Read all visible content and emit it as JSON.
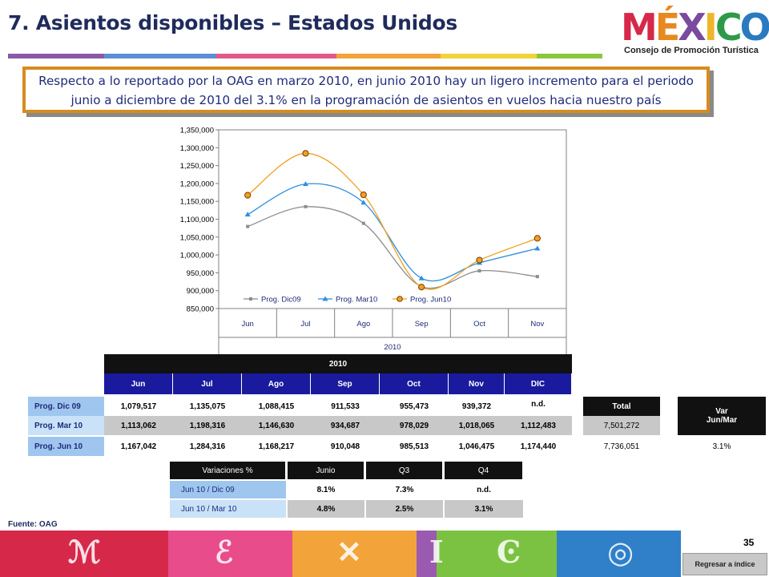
{
  "header": {
    "title": "7. Asientos disponibles – Estados Unidos",
    "logo_word": "MÉXICO",
    "logo_sub": "Consejo de Promoción Turística"
  },
  "callout": {
    "text": "Respecto a lo reportado por la OAG  en marzo 2010, en junio 2010 hay un ligero incremento para el periodo junio a diciembre de 2010 del 3.1% en la programación de asientos en vuelos hacia nuestro país"
  },
  "chart_data": {
    "type": "line",
    "categories": [
      "Jun",
      "Jul",
      "Ago",
      "Sep",
      "Oct",
      "Nov"
    ],
    "xlabel": "2010",
    "ylim": [
      850000,
      1350000
    ],
    "yticks": [
      "850,000",
      "900,000",
      "950,000",
      "1,000,000",
      "1,050,000",
      "1,100,000",
      "1,150,000",
      "1,200,000",
      "1,250,000",
      "1,300,000",
      "1,350,000"
    ],
    "legend": "bottom-inside",
    "series": [
      {
        "name": "Prog. Dic09",
        "color": "#8c8c8c",
        "values": [
          1079517,
          1135075,
          1088415,
          911533,
          955473,
          939372
        ]
      },
      {
        "name": "Prog. Mar10",
        "color": "#2f8ee0",
        "values": [
          1113062,
          1198316,
          1146630,
          934687,
          978029,
          1018065
        ]
      },
      {
        "name": "Prog. Jun10",
        "color": "#f0a020",
        "values": [
          1167042,
          1284316,
          1168217,
          910048,
          985513,
          1046475
        ]
      }
    ]
  },
  "table": {
    "year": "2010",
    "months": [
      "Jun",
      "Jul",
      "Ago",
      "Sep",
      "Oct",
      "Nov",
      "DIC"
    ],
    "rows": [
      {
        "label": "Prog. Dic 09",
        "values": [
          "1,079,517",
          "1,135,075",
          "1,088,415",
          "911,533",
          "955,473",
          "939,372",
          "n.d."
        ]
      },
      {
        "label": "Prog. Mar 10",
        "values": [
          "1,113,062",
          "1,198,316",
          "1,146,630",
          "934,687",
          "978,029",
          "1,018,065",
          "1,112,483"
        ]
      },
      {
        "label": "Prog. Jun 10",
        "values": [
          "1,167,042",
          "1,284,316",
          "1,168,217",
          "910,048",
          "985,513",
          "1,046,475",
          "1,174,440"
        ]
      }
    ],
    "total_header": "Total",
    "total_values": [
      "7,501,272",
      "7,736,051"
    ],
    "var_header": "Var Jun/Mar",
    "var_value": "3.1%"
  },
  "variaciones": {
    "headers": [
      "Variaciones %",
      "Junio",
      "Q3",
      "Q4"
    ],
    "rows": [
      {
        "label": "Jun 10 / Dic 09",
        "values": [
          "8.1%",
          "7.3%",
          "n.d."
        ]
      },
      {
        "label": "Jun 10 / Mar 10",
        "values": [
          "4.8%",
          "2.5%",
          "3.1%"
        ]
      }
    ]
  },
  "footer": {
    "source": "Fuente: OAG",
    "page_number": "35",
    "back_label": "Regresar a índice"
  }
}
